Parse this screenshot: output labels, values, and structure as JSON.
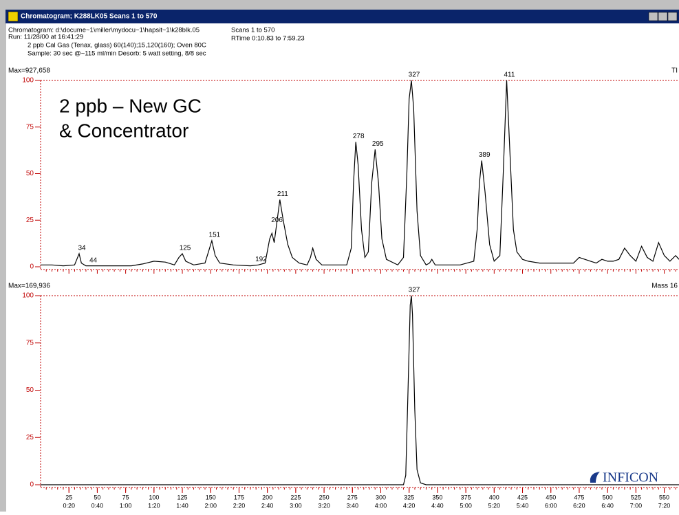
{
  "window": {
    "title": "Chromatogram; K288LK05    Scans 1 to 570"
  },
  "header": {
    "file": "Chromatogram: d:\\docume~1\\miller\\mydocu~1\\hapsit~1\\k28blk.05",
    "scans": "Scans    1 to 570",
    "run": "Run: 11/28/00 at 16:41:29",
    "rtime": "RTime 0:10.83 to 7:59.23",
    "method": "2 ppb Cal Gas (Tenax, glass)  60(140);15,120(160); Oven 80C",
    "sample": "Sample: 30 sec @~115 ml/min   Desorb: 5 watt setting, 8/8 sec"
  },
  "chart_data": [
    {
      "type": "line",
      "max_label": "Max=927,658",
      "trace_label": "TI",
      "annotation": [
        "2 ppb – New GC",
        "& Concentrator"
      ],
      "color": "#000000",
      "xlim": [
        0,
        563
      ],
      "ylim": [
        0,
        100
      ],
      "yticks": [
        0,
        25,
        50,
        75,
        100
      ],
      "x": [
        0,
        10,
        20,
        30,
        32,
        34,
        36,
        40,
        44,
        60,
        80,
        90,
        100,
        110,
        118,
        122,
        125,
        128,
        135,
        145,
        148,
        151,
        154,
        158,
        170,
        185,
        192,
        198,
        202,
        204,
        206,
        208,
        211,
        214,
        218,
        222,
        228,
        235,
        238,
        240,
        243,
        248,
        260,
        270,
        274,
        276,
        278,
        280,
        283,
        286,
        289,
        292,
        295,
        298,
        301,
        305,
        315,
        320,
        323,
        325,
        327,
        329,
        332,
        335,
        340,
        343,
        345,
        348,
        370,
        382,
        385,
        387,
        389,
        392,
        396,
        400,
        405,
        408,
        411,
        414,
        417,
        420,
        425,
        430,
        440,
        460,
        470,
        475,
        480,
        485,
        490,
        495,
        500,
        505,
        510,
        515,
        520,
        525,
        530,
        535,
        540,
        545,
        550,
        555,
        560,
        563
      ],
      "values": [
        1,
        1,
        0.5,
        1,
        4,
        7,
        2,
        0.5,
        0.5,
        0.5,
        0.5,
        1.5,
        3,
        2.5,
        1,
        5,
        7,
        3,
        1,
        2,
        8,
        14,
        6,
        2,
        1,
        0.5,
        1,
        2,
        15,
        18,
        13,
        22,
        36,
        25,
        12,
        5,
        2,
        1,
        5,
        10,
        4,
        1,
        1,
        1,
        10,
        45,
        67,
        55,
        20,
        5,
        8,
        45,
        63,
        45,
        15,
        4,
        1,
        5,
        50,
        90,
        100,
        85,
        30,
        6,
        1,
        2,
        4,
        1,
        1,
        3,
        20,
        45,
        57,
        40,
        12,
        3,
        6,
        50,
        100,
        60,
        20,
        8,
        4,
        3,
        2,
        2,
        2,
        5,
        4,
        3,
        2,
        4,
        3,
        3,
        4,
        10,
        6,
        3,
        11,
        5,
        3,
        13,
        6,
        3,
        6,
        4
      ],
      "peak_labels": [
        34,
        44,
        125,
        151,
        192,
        206,
        211,
        278,
        295,
        327,
        389,
        411
      ]
    },
    {
      "type": "line",
      "max_label": "Max=169,936",
      "trace_label": "Mass 16",
      "color": "#000000",
      "xlim": [
        0,
        563
      ],
      "ylim": [
        0,
        100
      ],
      "yticks": [
        0,
        25,
        50,
        75,
        100
      ],
      "x": [
        0,
        100,
        200,
        300,
        320,
        322,
        324,
        326,
        327,
        328,
        330,
        332,
        335,
        340,
        450,
        563
      ],
      "values": [
        0,
        0,
        0,
        0,
        0,
        5,
        50,
        95,
        100,
        90,
        40,
        8,
        1,
        0,
        0,
        0
      ],
      "peak_labels": [
        327
      ],
      "xticks": [
        25,
        50,
        75,
        100,
        125,
        150,
        175,
        200,
        225,
        250,
        275,
        300,
        325,
        350,
        375,
        400,
        425,
        450,
        475,
        500,
        525,
        550
      ],
      "xtick_times": [
        "0:20",
        "0:40",
        "1:00",
        "1:20",
        "1:40",
        "2:00",
        "2:20",
        "2:40",
        "3:00",
        "3:20",
        "3:40",
        "4:00",
        "4:20",
        "4:40",
        "5:00",
        "5:20",
        "5:40",
        "6:00",
        "6:20",
        "6:40",
        "7:00",
        "7:20"
      ]
    }
  ],
  "logo": "INFICON"
}
